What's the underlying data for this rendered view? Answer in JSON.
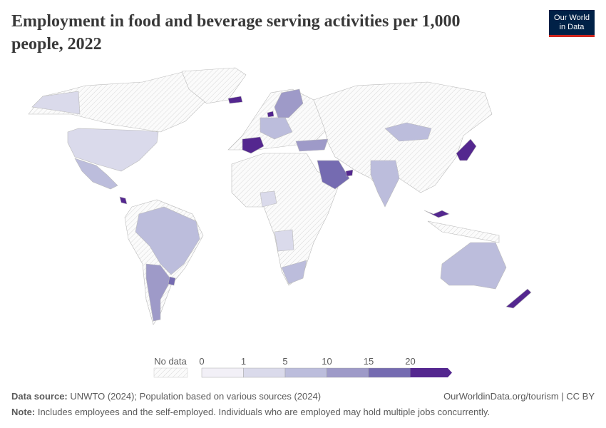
{
  "header": {
    "title": "Employment in food and beverage serving activities per 1,000 people, 2022",
    "logo": "Our World in Data"
  },
  "chart_data": {
    "type": "choropleth",
    "title": "Employment in food and beverage serving activities per 1,000 people, 2022",
    "legend": {
      "no_data_label": "No data",
      "ticks": [
        "0",
        "1",
        "5",
        "10",
        "15",
        "20"
      ],
      "bins": [
        {
          "range": [
            0,
            1
          ],
          "color": "#f2f0f7"
        },
        {
          "range": [
            1,
            5
          ],
          "color": "#dadaeb"
        },
        {
          "range": [
            5,
            10
          ],
          "color": "#bcbddc"
        },
        {
          "range": [
            10,
            15
          ],
          "color": "#9e9ac8"
        },
        {
          "range": [
            15,
            20
          ],
          "color": "#756bb1"
        },
        {
          "range": [
            20,
            null
          ],
          "color": "#54278f"
        }
      ]
    },
    "no_data_color": "#f4f4f4"
  },
  "footer": {
    "source_label": "Data source:",
    "source": "UNWTO (2024); Population based on various sources (2024)",
    "note_label": "Note:",
    "note": "Includes employees and the self-employed. Individuals who are employed may hold multiple jobs concurrently.",
    "link": "OurWorldinData.org/tourism | CC BY"
  }
}
